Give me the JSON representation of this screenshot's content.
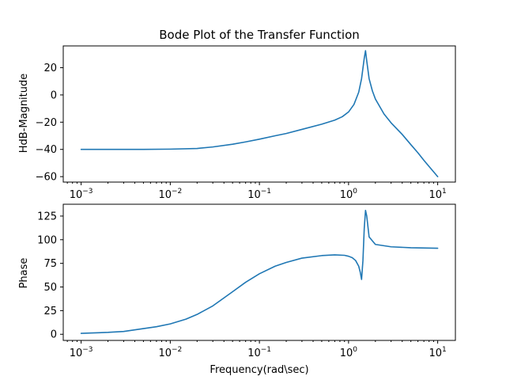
{
  "chart_data": [
    {
      "type": "line",
      "title": "Bode Plot of the Transfer Function",
      "xlabel": "",
      "ylabel": "HdB-Magnitude",
      "xscale": "log",
      "xlim": [
        0.00063,
        15.8
      ],
      "ylim": [
        -64,
        36
      ],
      "xticks": [
        0.001,
        0.01,
        0.1,
        1,
        10
      ],
      "xtick_labels": [
        {
          "base": "10",
          "exp": "−3"
        },
        {
          "base": "10",
          "exp": "−2"
        },
        {
          "base": "10",
          "exp": "−1"
        },
        {
          "base": "10",
          "exp": "0"
        },
        {
          "base": "10",
          "exp": "1"
        }
      ],
      "yticks": [
        -60,
        -40,
        -20,
        0,
        20
      ],
      "ytick_labels": [
        "−60",
        "−40",
        "−20",
        "0",
        "20"
      ],
      "grid": false,
      "color": "#1f77b4",
      "x": [
        0.001,
        0.002,
        0.005,
        0.01,
        0.02,
        0.03,
        0.05,
        0.07,
        0.1,
        0.15,
        0.2,
        0.3,
        0.5,
        0.7,
        0.85,
        1.0,
        1.15,
        1.3,
        1.4,
        1.5,
        1.55,
        1.6,
        1.7,
        1.85,
        2.0,
        2.5,
        3.0,
        4.0,
        5.0,
        6.0,
        7.0,
        8.0,
        10.0
      ],
      "y": [
        -40,
        -40,
        -40,
        -39.8,
        -39.3,
        -38.2,
        -36.2,
        -34.5,
        -32.5,
        -30.0,
        -28.3,
        -25.3,
        -21.5,
        -18.5,
        -16.0,
        -12.5,
        -7.0,
        2.0,
        12.0,
        27.0,
        32.5,
        25.0,
        12.0,
        3.0,
        -3.0,
        -14.0,
        -20.5,
        -29.0,
        -36.5,
        -42.5,
        -48.0,
        -52.5,
        -60.0
      ]
    },
    {
      "type": "line",
      "title": "",
      "xlabel": "Frequency(rad\\sec)",
      "ylabel": "Phase",
      "xscale": "log",
      "xlim": [
        0.00063,
        15.8
      ],
      "ylim": [
        -6.5,
        137.5
      ],
      "xticks": [
        0.001,
        0.01,
        0.1,
        1,
        10
      ],
      "xtick_labels": [
        {
          "base": "10",
          "exp": "−3"
        },
        {
          "base": "10",
          "exp": "−2"
        },
        {
          "base": "10",
          "exp": "−1"
        },
        {
          "base": "10",
          "exp": "0"
        },
        {
          "base": "10",
          "exp": "1"
        }
      ],
      "yticks": [
        0,
        25,
        50,
        75,
        100,
        125
      ],
      "ytick_labels": [
        "0",
        "25",
        "50",
        "75",
        "100",
        "125"
      ],
      "grid": false,
      "color": "#1f77b4",
      "x": [
        0.001,
        0.002,
        0.003,
        0.005,
        0.007,
        0.01,
        0.015,
        0.02,
        0.03,
        0.05,
        0.07,
        0.1,
        0.15,
        0.2,
        0.3,
        0.5,
        0.7,
        0.9,
        1.0,
        1.1,
        1.2,
        1.3,
        1.35,
        1.4,
        1.45,
        1.5,
        1.55,
        1.6,
        1.7,
        2.0,
        3.0,
        5.0,
        10.0
      ],
      "y": [
        1,
        2,
        3,
        6,
        8,
        11,
        16,
        21,
        30,
        45,
        55,
        64,
        72,
        76,
        80.5,
        83.2,
        84,
        83.5,
        82.5,
        81,
        78,
        72,
        66,
        58,
        78,
        112,
        131,
        125,
        103,
        95,
        92.5,
        91.5,
        91
      ]
    }
  ]
}
